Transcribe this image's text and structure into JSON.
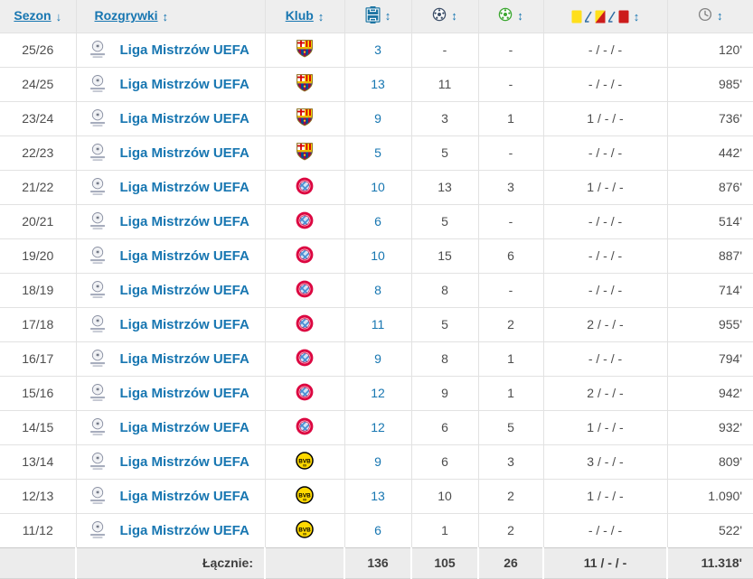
{
  "colors": {
    "link_blue": "#1776b1",
    "pitch_icon_blue": "#1d75a3",
    "goals_ball_navy": "#3d4f68",
    "assists_ball_green": "#3aa62f",
    "yellow_card": "#ffdf1b",
    "red_card": "#cc1b1b",
    "header_background": "#eeeeee",
    "footer_background": "#ececec"
  },
  "table": {
    "headers": {
      "season": "Sezon",
      "competition": "Rozgrywki",
      "club": "Klub"
    },
    "sort_icons": {
      "season": "↓",
      "default": "↕"
    },
    "column_icons": [
      "pitch-matches",
      "ball-goals",
      "ball-assists",
      "cards-yellow-yellowred-red",
      "clock-minutes"
    ],
    "rows": [
      {
        "season": "25/26",
        "competition": "Liga Mistrzów UEFA",
        "club": "fc-barcelona",
        "appearances": "3",
        "goals": "-",
        "assists": "-",
        "cards": "- / - / -",
        "minutes": "120'"
      },
      {
        "season": "24/25",
        "competition": "Liga Mistrzów UEFA",
        "club": "fc-barcelona",
        "appearances": "13",
        "goals": "11",
        "assists": "-",
        "cards": "- / - / -",
        "minutes": "985'"
      },
      {
        "season": "23/24",
        "competition": "Liga Mistrzów UEFA",
        "club": "fc-barcelona",
        "appearances": "9",
        "goals": "3",
        "assists": "1",
        "cards": "1 / - / -",
        "minutes": "736'"
      },
      {
        "season": "22/23",
        "competition": "Liga Mistrzów UEFA",
        "club": "fc-barcelona",
        "appearances": "5",
        "goals": "5",
        "assists": "-",
        "cards": "- / - / -",
        "minutes": "442'"
      },
      {
        "season": "21/22",
        "competition": "Liga Mistrzów UEFA",
        "club": "bayern-munich",
        "appearances": "10",
        "goals": "13",
        "assists": "3",
        "cards": "1 / - / -",
        "minutes": "876'"
      },
      {
        "season": "20/21",
        "competition": "Liga Mistrzów UEFA",
        "club": "bayern-munich",
        "appearances": "6",
        "goals": "5",
        "assists": "-",
        "cards": "- / - / -",
        "minutes": "514'"
      },
      {
        "season": "19/20",
        "competition": "Liga Mistrzów UEFA",
        "club": "bayern-munich",
        "appearances": "10",
        "goals": "15",
        "assists": "6",
        "cards": "- / - / -",
        "minutes": "887'"
      },
      {
        "season": "18/19",
        "competition": "Liga Mistrzów UEFA",
        "club": "bayern-munich",
        "appearances": "8",
        "goals": "8",
        "assists": "-",
        "cards": "- / - / -",
        "minutes": "714'"
      },
      {
        "season": "17/18",
        "competition": "Liga Mistrzów UEFA",
        "club": "bayern-munich",
        "appearances": "11",
        "goals": "5",
        "assists": "2",
        "cards": "2 / - / -",
        "minutes": "955'"
      },
      {
        "season": "16/17",
        "competition": "Liga Mistrzów UEFA",
        "club": "bayern-munich",
        "appearances": "9",
        "goals": "8",
        "assists": "1",
        "cards": "- / - / -",
        "minutes": "794'"
      },
      {
        "season": "15/16",
        "competition": "Liga Mistrzów UEFA",
        "club": "bayern-munich",
        "appearances": "12",
        "goals": "9",
        "assists": "1",
        "cards": "2 / - / -",
        "minutes": "942'"
      },
      {
        "season": "14/15",
        "competition": "Liga Mistrzów UEFA",
        "club": "bayern-munich",
        "appearances": "12",
        "goals": "6",
        "assists": "5",
        "cards": "1 / - / -",
        "minutes": "932'"
      },
      {
        "season": "13/14",
        "competition": "Liga Mistrzów UEFA",
        "club": "borussia-dortmund",
        "appearances": "9",
        "goals": "6",
        "assists": "3",
        "cards": "3 / - / -",
        "minutes": "809'"
      },
      {
        "season": "12/13",
        "competition": "Liga Mistrzów UEFA",
        "club": "borussia-dortmund",
        "appearances": "13",
        "goals": "10",
        "assists": "2",
        "cards": "1 / - / -",
        "minutes": "1.090'"
      },
      {
        "season": "11/12",
        "competition": "Liga Mistrzów UEFA",
        "club": "borussia-dortmund",
        "appearances": "6",
        "goals": "1",
        "assists": "2",
        "cards": "- / - / -",
        "minutes": "522'"
      }
    ],
    "footer": {
      "label": "Łącznie:",
      "appearances": "136",
      "goals": "105",
      "assists": "26",
      "cards": "11 / - / -",
      "minutes": "11.318'"
    }
  }
}
